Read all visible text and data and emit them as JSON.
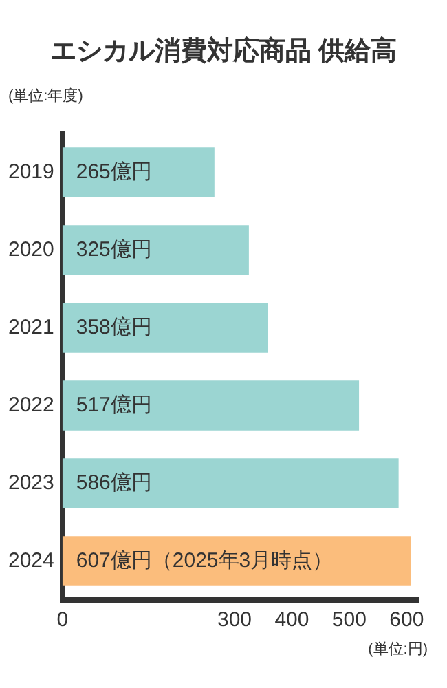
{
  "chart_data": {
    "type": "bar",
    "orientation": "horizontal",
    "title": "エシカル消費対応商品 供給高",
    "ylabel": "(単位:年度)",
    "xlabel": "(単位:円)",
    "categories": [
      "2019",
      "2020",
      "2021",
      "2022",
      "2023",
      "2024"
    ],
    "values": [
      265,
      325,
      358,
      517,
      586,
      607
    ],
    "colors": [
      "#9bd5d2",
      "#9bd5d2",
      "#9bd5d2",
      "#9bd5d2",
      "#9bd5d2",
      "#fbbd7c"
    ],
    "value_labels": [
      "265億円",
      "325億円",
      "358億円",
      "517億円",
      "586億円",
      "607億円（2025年3月時点）"
    ],
    "xlim": [
      0,
      620
    ],
    "xticks": [
      0,
      300,
      400,
      500,
      600
    ],
    "grid": false,
    "legend": false
  }
}
